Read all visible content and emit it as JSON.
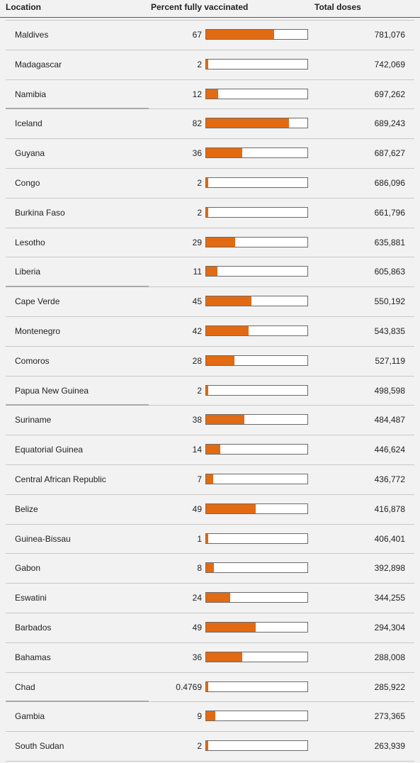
{
  "table": {
    "headers": {
      "location": "Location",
      "percent": "Percent fully vaccinated",
      "doses": "Total doses"
    }
  },
  "colors": {
    "bar_fill": "#e26a12",
    "bar_bg": "#ffffff",
    "background": "#f2f2f2"
  },
  "chart_data": {
    "type": "table",
    "columns": [
      "Location",
      "Percent fully vaccinated",
      "Total doses"
    ],
    "xlim": [
      0,
      100
    ],
    "rows": [
      {
        "location": "Maldives",
        "percent": "67",
        "value": 67,
        "doses": "781,076"
      },
      {
        "location": "Madagascar",
        "percent": "2",
        "value": 2,
        "doses": "742,069"
      },
      {
        "location": "Namibia",
        "percent": "12",
        "value": 12,
        "doses": "697,262"
      },
      {
        "location": "Iceland",
        "percent": "82",
        "value": 82,
        "doses": "689,243"
      },
      {
        "location": "Guyana",
        "percent": "36",
        "value": 36,
        "doses": "687,627"
      },
      {
        "location": "Congo",
        "percent": "2",
        "value": 2,
        "doses": "686,096"
      },
      {
        "location": "Burkina Faso",
        "percent": "2",
        "value": 2,
        "doses": "661,796"
      },
      {
        "location": "Lesotho",
        "percent": "29",
        "value": 29,
        "doses": "635,881"
      },
      {
        "location": "Liberia",
        "percent": "11",
        "value": 11,
        "doses": "605,863"
      },
      {
        "location": "Cape Verde",
        "percent": "45",
        "value": 45,
        "doses": "550,192"
      },
      {
        "location": "Montenegro",
        "percent": "42",
        "value": 42,
        "doses": "543,835"
      },
      {
        "location": "Comoros",
        "percent": "28",
        "value": 28,
        "doses": "527,119"
      },
      {
        "location": "Papua New Guinea",
        "percent": "2",
        "value": 2,
        "doses": "498,598"
      },
      {
        "location": "Suriname",
        "percent": "38",
        "value": 38,
        "doses": "484,487"
      },
      {
        "location": "Equatorial Guinea",
        "percent": "14",
        "value": 14,
        "doses": "446,624"
      },
      {
        "location": "Central African Republic",
        "percent": "7",
        "value": 7,
        "doses": "436,772"
      },
      {
        "location": "Belize",
        "percent": "49",
        "value": 49,
        "doses": "416,878"
      },
      {
        "location": "Guinea-Bissau",
        "percent": "1",
        "value": 1,
        "doses": "406,401"
      },
      {
        "location": "Gabon",
        "percent": "8",
        "value": 8,
        "doses": "392,898"
      },
      {
        "location": "Eswatini",
        "percent": "24",
        "value": 24,
        "doses": "344,255"
      },
      {
        "location": "Barbados",
        "percent": "49",
        "value": 49,
        "doses": "294,304"
      },
      {
        "location": "Bahamas",
        "percent": "36",
        "value": 36,
        "doses": "288,008"
      },
      {
        "location": "Chad",
        "percent": "0.4769",
        "value": 0.4769,
        "doses": "285,922"
      },
      {
        "location": "Gambia",
        "percent": "9",
        "value": 9,
        "doses": "273,365"
      },
      {
        "location": "South Sudan",
        "percent": "2",
        "value": 2,
        "doses": "263,939"
      }
    ]
  }
}
